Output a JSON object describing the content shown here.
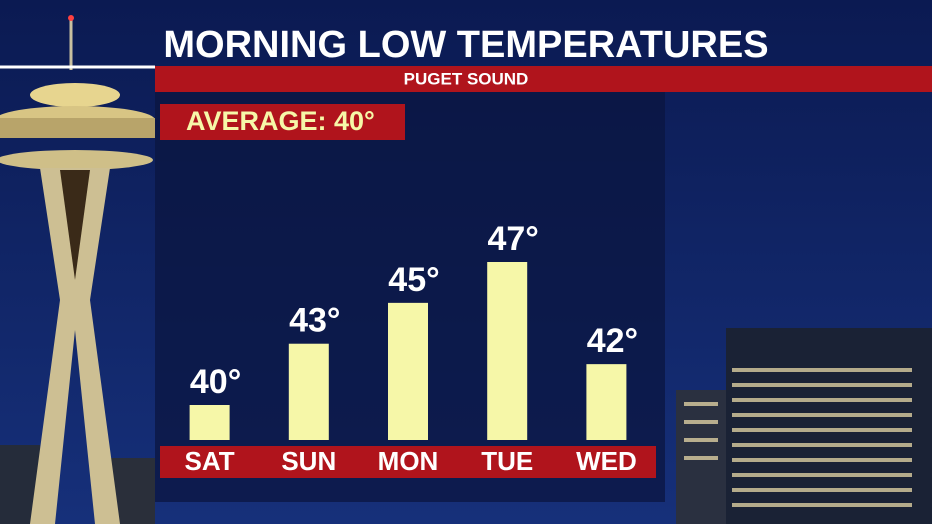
{
  "chart_data": {
    "type": "bar",
    "title": "MORNING LOW TEMPERATURES",
    "subtitle": "PUGET SOUND",
    "annotation": "AVERAGE: 40°",
    "categories": [
      "SAT",
      "SUN",
      "MON",
      "TUE",
      "WED"
    ],
    "values": [
      40,
      43,
      45,
      47,
      42
    ],
    "value_labels": [
      "40°",
      "43°",
      "45°",
      "47°",
      "42°"
    ],
    "color": "#f6f7a8"
  }
}
